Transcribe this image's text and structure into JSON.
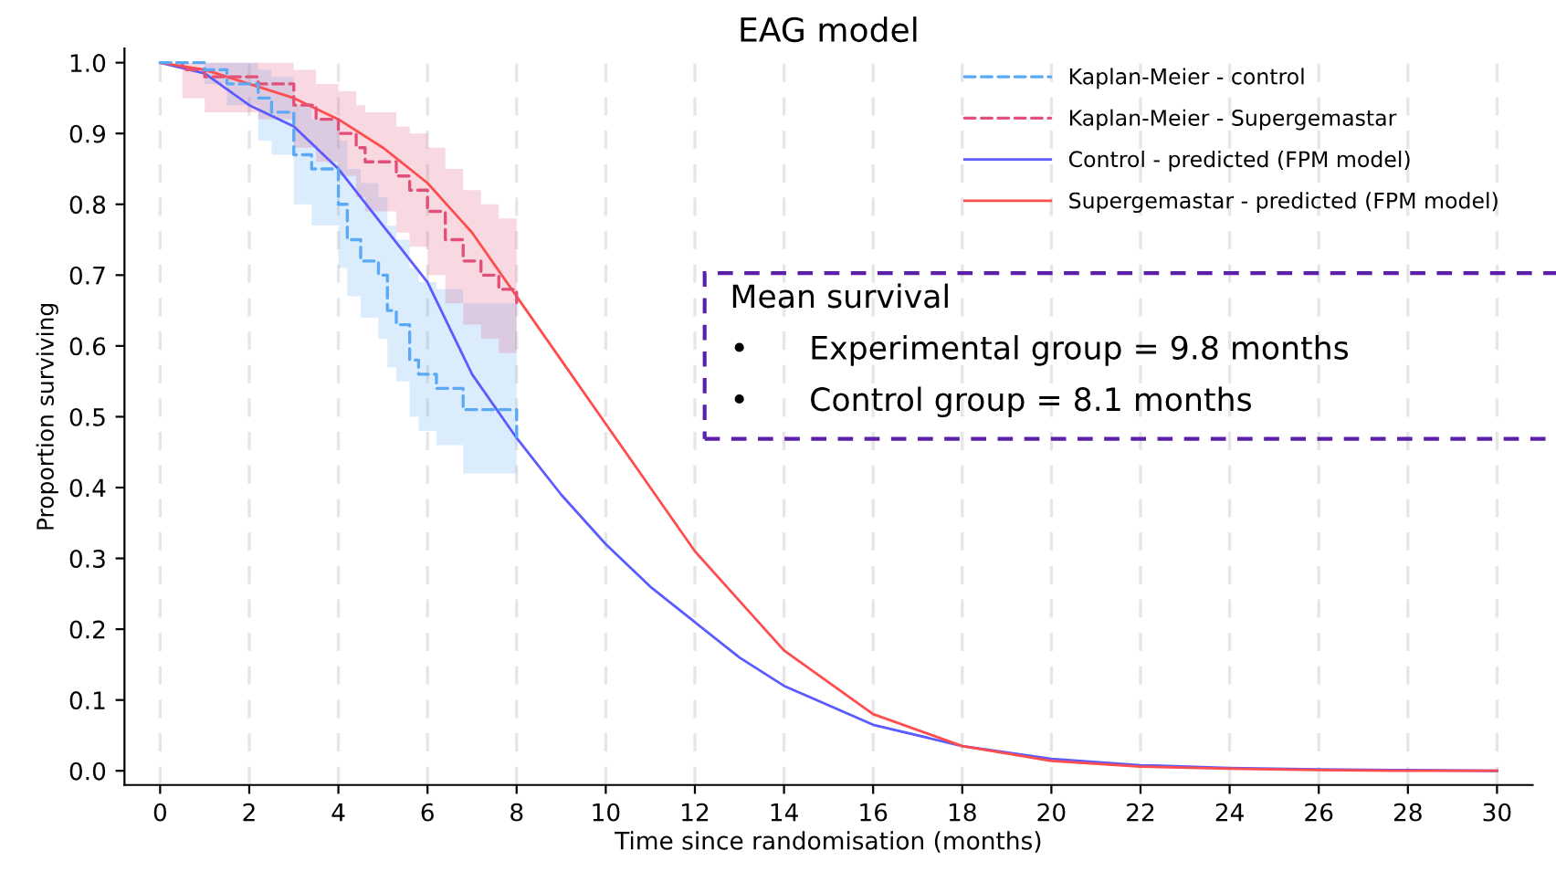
{
  "chart_data": {
    "type": "line",
    "title": "EAG model",
    "xlabel": "Time since randomisation (months)",
    "ylabel": "Proportion surviving",
    "xlim": [
      -0.8,
      30.8
    ],
    "xticks": [
      0,
      2,
      4,
      6,
      8,
      10,
      12,
      14,
      16,
      18,
      20,
      22,
      24,
      26,
      28,
      30
    ],
    "ylim": [
      -0.02,
      1.02
    ],
    "yticks": [
      {
        "value": 0,
        "label": "0.0"
      },
      0.1,
      0.2,
      0.3,
      0.4,
      0.5,
      0.6,
      0.7,
      0.8,
      0.9,
      {
        "value": 1,
        "label": "1.0"
      }
    ],
    "grid": "x",
    "legend": "top right",
    "series": [
      {
        "name": "Kaplan-Meier - control",
        "type": "step",
        "line_style": "dashed",
        "color": "#5aa9f5",
        "x": [
          0,
          1,
          1.5,
          2.2,
          2.5,
          3,
          3.4,
          4,
          4.2,
          4.5,
          4.9,
          5.1,
          5.3,
          5.6,
          5.8,
          6.2,
          6.8,
          8
        ],
        "values": [
          1,
          0.99,
          0.97,
          0.95,
          0.93,
          0.87,
          0.85,
          0.8,
          0.75,
          0.72,
          0.7,
          0.65,
          0.63,
          0.58,
          0.56,
          0.54,
          0.51,
          0.47
        ],
        "lower": [
          1,
          0.97,
          0.94,
          0.89,
          0.87,
          0.8,
          0.77,
          0.71,
          0.67,
          0.64,
          0.61,
          0.57,
          0.55,
          0.5,
          0.48,
          0.46,
          0.42,
          0.39
        ],
        "upper": [
          1,
          1,
          1,
          0.99,
          0.98,
          0.94,
          0.92,
          0.89,
          0.85,
          0.83,
          0.81,
          0.77,
          0.75,
          0.71,
          0.69,
          0.68,
          0.66,
          0.63
        ]
      },
      {
        "name": "Kaplan-Meier - Supergemastar",
        "type": "step",
        "line_style": "dashed",
        "color": "#e0507a",
        "x": [
          0,
          0.5,
          1,
          2.2,
          3,
          3.5,
          4,
          4.4,
          4.6,
          5.3,
          5.6,
          6,
          6.4,
          6.8,
          7.2,
          7.6,
          8
        ],
        "values": [
          1,
          0.99,
          0.98,
          0.97,
          0.94,
          0.92,
          0.9,
          0.88,
          0.86,
          0.84,
          0.82,
          0.79,
          0.75,
          0.72,
          0.7,
          0.68,
          0.66
        ],
        "lower": [
          1,
          0.95,
          0.93,
          0.92,
          0.88,
          0.86,
          0.84,
          0.81,
          0.79,
          0.76,
          0.74,
          0.7,
          0.66,
          0.63,
          0.61,
          0.59,
          0.57
        ],
        "upper": [
          1,
          1,
          1,
          1,
          0.99,
          0.97,
          0.96,
          0.94,
          0.93,
          0.91,
          0.9,
          0.88,
          0.85,
          0.82,
          0.8,
          0.78,
          0.75
        ]
      },
      {
        "name": "Control - predicted (FPM model)",
        "line_style": "solid",
        "color": "#5b5bff",
        "x": [
          0,
          1,
          2,
          3,
          4,
          5,
          6,
          7,
          8,
          9,
          10,
          11,
          12,
          13,
          14,
          16,
          18,
          20,
          22,
          24,
          26,
          28,
          30
        ],
        "values": [
          1,
          0.985,
          0.94,
          0.91,
          0.85,
          0.77,
          0.69,
          0.56,
          0.47,
          0.39,
          0.32,
          0.26,
          0.21,
          0.16,
          0.12,
          0.065,
          0.035,
          0.017,
          0.008,
          0.004,
          0.002,
          0.001,
          0
        ]
      },
      {
        "name": "Supergemastar - predicted (FPM model)",
        "line_style": "solid",
        "color": "#ff4d4d",
        "x": [
          0,
          1,
          2,
          3,
          4,
          5,
          6,
          7,
          8,
          9,
          10,
          11,
          12,
          13,
          14,
          16,
          18,
          20,
          22,
          24,
          26,
          28,
          30
        ],
        "values": [
          1,
          0.99,
          0.97,
          0.95,
          0.92,
          0.88,
          0.83,
          0.76,
          0.67,
          0.58,
          0.49,
          0.4,
          0.31,
          0.24,
          0.17,
          0.08,
          0.035,
          0.014,
          0.006,
          0.003,
          0.001,
          0,
          0
        ]
      }
    ],
    "annotations": [
      "Mean survival",
      "•      Experimental group = 9.8 months",
      "•      Control group = 8.1 months"
    ]
  }
}
